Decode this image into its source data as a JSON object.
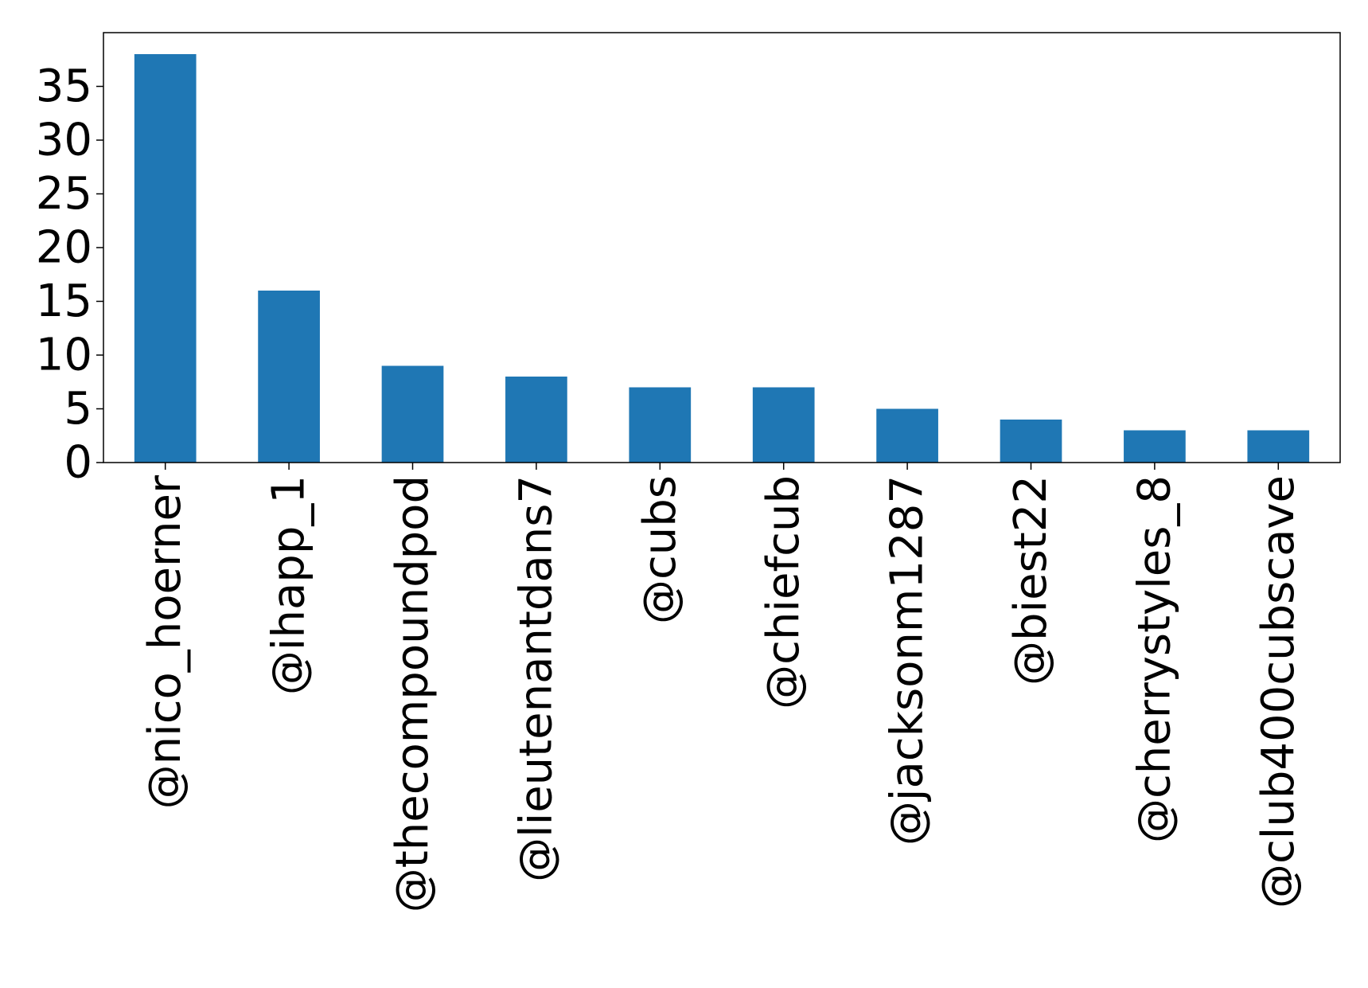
{
  "chart_data": {
    "type": "bar",
    "categories": [
      "@nico_hoerner",
      "@ihapp_1",
      "@thecompoundpod",
      "@lieutenantdans7",
      "@cubs",
      "@chiefcub",
      "@jacksonm1287",
      "@biest22",
      "@cherrystyles_8",
      "@club400cubscave"
    ],
    "values": [
      38,
      16,
      9,
      8,
      7,
      7,
      5,
      4,
      3,
      3
    ],
    "yticks": [
      "0",
      "5",
      "10",
      "15",
      "20",
      "25",
      "30",
      "35"
    ],
    "ylim": [
      0,
      40
    ],
    "title": "",
    "xlabel": "",
    "ylabel": "",
    "grid": false,
    "bar_color": "#1f77b4"
  }
}
